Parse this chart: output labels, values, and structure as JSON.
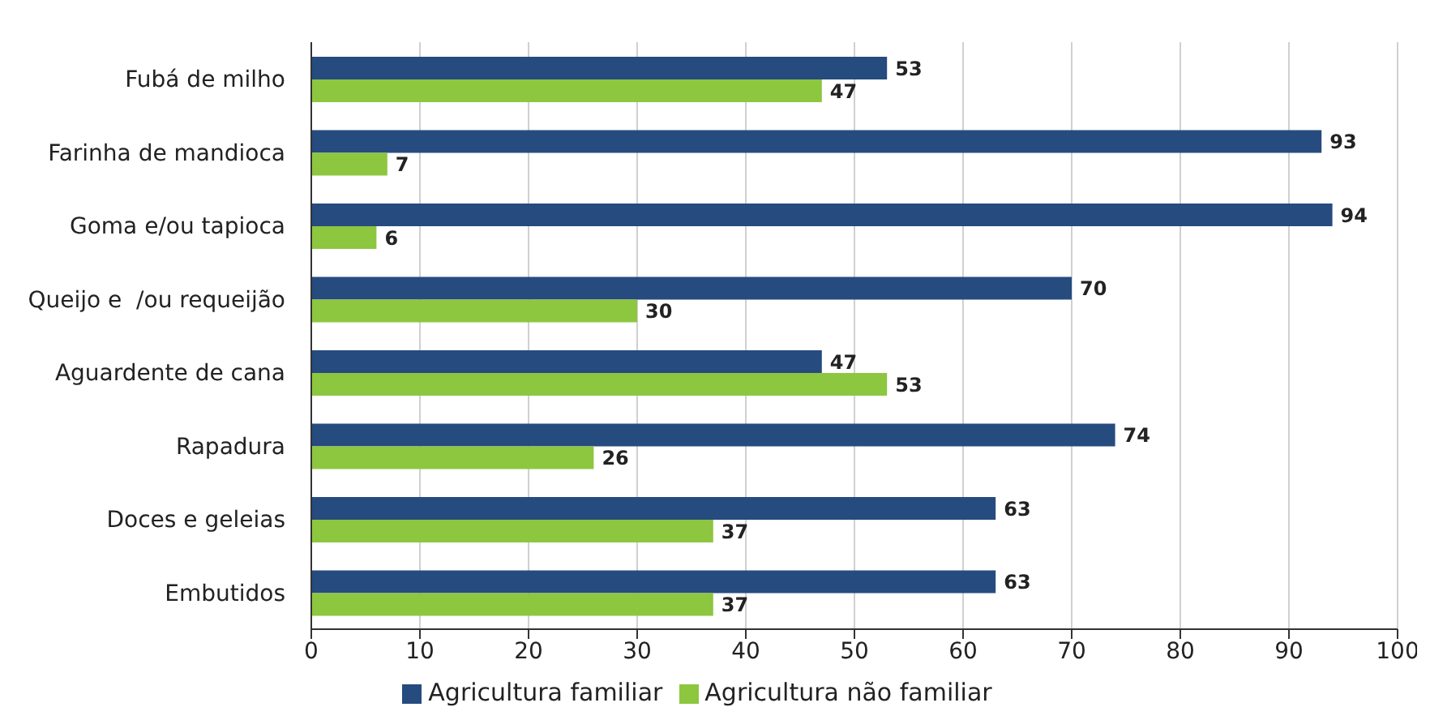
{
  "chart_data": {
    "type": "bar",
    "orientation": "horizontal",
    "categories": [
      "Fubá de milho",
      "Farinha de mandioca",
      "Goma e/ou tapioca",
      "Queijo e  /ou requeijão",
      "Aguardente de cana",
      "Rapadura",
      "Doces e geleias",
      "Embutidos"
    ],
    "series": [
      {
        "name": "Agricultura familiar",
        "color": "#264b7e",
        "values": [
          53,
          93,
          94,
          70,
          47,
          74,
          63,
          63
        ]
      },
      {
        "name": "Agricultura não familiar",
        "color": "#8dc63f",
        "values": [
          47,
          7,
          6,
          30,
          53,
          26,
          37,
          37
        ]
      }
    ],
    "xlim": [
      0,
      100
    ],
    "xticks": [
      0,
      10,
      20,
      30,
      40,
      50,
      60,
      70,
      80,
      90,
      100
    ],
    "grid": "x",
    "legend": "bottom",
    "data_labels": true
  }
}
